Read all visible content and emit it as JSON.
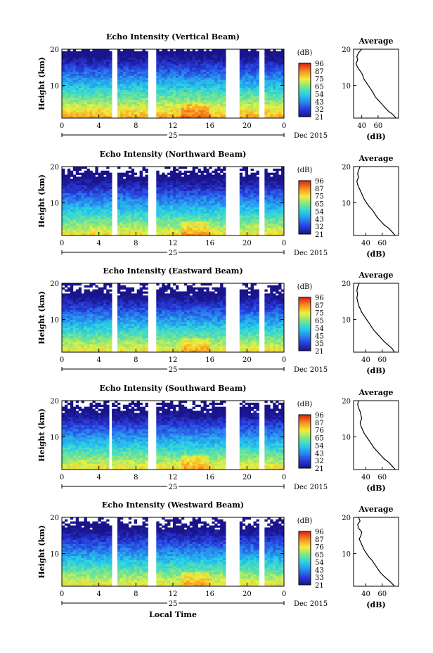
{
  "figure": {
    "xlabel": "Local Time",
    "date_label": "Dec 2015",
    "day_label": "25"
  },
  "chart_data": [
    {
      "type": "heatmap",
      "title": "Echo Intensity (Vertical Beam)",
      "ylabel": "Height (km)",
      "xlim": [
        0,
        24
      ],
      "ylim": [
        1,
        20
      ],
      "xticks": [
        "0",
        "4",
        "8",
        "12",
        "16",
        "20",
        "0"
      ],
      "yticks": [
        "10",
        "20"
      ],
      "colorbar": {
        "label": "(dB)",
        "ticks": [
          "96",
          "87",
          "75",
          "65",
          "54",
          "43",
          "32",
          "21"
        ],
        "range": [
          21,
          96
        ]
      },
      "data_gaps_hours": [
        [
          5.5,
          5.9
        ],
        [
          9.4,
          10.2
        ],
        [
          17.8,
          19.1
        ],
        [
          21.3,
          21.8
        ]
      ],
      "profile": {
        "title": "Average",
        "xlabel": "(dB)",
        "xlim": [
          30,
          85
        ],
        "xticks": [
          "40",
          "60"
        ],
        "height": [
          1,
          2,
          3,
          4,
          5,
          6,
          7,
          8,
          9,
          10,
          11,
          12,
          13,
          14,
          15,
          16,
          17,
          18,
          19,
          20
        ],
        "value": [
          82,
          78,
          72,
          68,
          64,
          60,
          56,
          54,
          51,
          48,
          45,
          42,
          41,
          38,
          35,
          33,
          35,
          34,
          36,
          40
        ]
      }
    },
    {
      "type": "heatmap",
      "title": "Echo Intensity (Northward Beam)",
      "ylabel": "Height (km)",
      "xlim": [
        0,
        24
      ],
      "ylim": [
        1,
        20
      ],
      "xticks": [
        "0",
        "4",
        "8",
        "12",
        "16",
        "20",
        "0"
      ],
      "yticks": [
        "10",
        "20"
      ],
      "colorbar": {
        "label": "(dB)",
        "ticks": [
          "96",
          "87",
          "75",
          "65",
          "54",
          "43",
          "32",
          "21"
        ],
        "range": [
          21,
          96
        ]
      },
      "data_gaps_hours": [
        [
          5.5,
          5.9
        ],
        [
          9.4,
          10.2
        ],
        [
          17.8,
          19.1
        ],
        [
          21.3,
          21.8
        ]
      ],
      "profile": {
        "title": "Average",
        "xlabel": "(dB)",
        "xlim": [
          25,
          80
        ],
        "xticks": [
          "40",
          "60"
        ],
        "height": [
          1,
          2,
          3,
          4,
          5,
          6,
          7,
          8,
          9,
          10,
          11,
          12,
          13,
          14,
          15,
          16,
          17,
          18,
          19,
          20
        ],
        "value": [
          76,
          72,
          68,
          62,
          58,
          54,
          51,
          48,
          44,
          41,
          38,
          36,
          34,
          32,
          30,
          29,
          31,
          30,
          31,
          33
        ]
      }
    },
    {
      "type": "heatmap",
      "title": "Echo Intensity (Eastward Beam)",
      "ylabel": "Height (km)",
      "xlim": [
        0,
        24
      ],
      "ylim": [
        1,
        20
      ],
      "xticks": [
        "0",
        "4",
        "8",
        "12",
        "16",
        "20",
        "0"
      ],
      "yticks": [
        "10",
        "20"
      ],
      "colorbar": {
        "label": "(dB)",
        "ticks": [
          "96",
          "87",
          "75",
          "65",
          "54",
          "45",
          "35",
          "21"
        ],
        "range": [
          21,
          96
        ]
      },
      "data_gaps_hours": [
        [
          5.5,
          5.9
        ],
        [
          9.4,
          10.2
        ],
        [
          17.8,
          19.1
        ],
        [
          21.3,
          21.8
        ]
      ],
      "profile": {
        "title": "Average",
        "xlabel": "(dB)",
        "xlim": [
          25,
          80
        ],
        "xticks": [
          "40",
          "60"
        ],
        "height": [
          1,
          2,
          3,
          4,
          5,
          6,
          7,
          8,
          9,
          10,
          11,
          12,
          13,
          14,
          15,
          16,
          17,
          18,
          19,
          20
        ],
        "value": [
          75,
          72,
          67,
          62,
          58,
          54,
          50,
          47,
          44,
          41,
          38,
          35,
          33,
          31,
          30,
          29,
          30,
          29,
          30,
          32
        ]
      }
    },
    {
      "type": "heatmap",
      "title": "Echo Intensity (Southward Beam)",
      "ylabel": "Height (km)",
      "xlim": [
        0,
        24
      ],
      "ylim": [
        1,
        20
      ],
      "xticks": [
        "0",
        "4",
        "8",
        "12",
        "16",
        "20",
        "0"
      ],
      "yticks": [
        "10",
        "20"
      ],
      "colorbar": {
        "label": "(dB)",
        "ticks": [
          "96",
          "87",
          "76",
          "65",
          "54",
          "43",
          "32",
          "21"
        ],
        "range": [
          21,
          96
        ]
      },
      "data_gaps_hours": [
        [
          5.0,
          5.3
        ],
        [
          9.4,
          10.2
        ],
        [
          17.8,
          19.1
        ],
        [
          21.3,
          21.8
        ]
      ],
      "profile": {
        "title": "Average",
        "xlabel": "(dB)",
        "xlim": [
          25,
          80
        ],
        "xticks": [
          "40",
          "60"
        ],
        "height": [
          1,
          2,
          3,
          4,
          5,
          6,
          7,
          8,
          9,
          10,
          11,
          12,
          13,
          14,
          15,
          16,
          17,
          18,
          19,
          20
        ],
        "value": [
          76,
          72,
          68,
          62,
          58,
          54,
          50,
          47,
          44,
          41,
          38,
          36,
          34,
          33,
          35,
          34,
          33,
          31,
          30,
          31
        ]
      }
    },
    {
      "type": "heatmap",
      "title": "Echo Intensity (Westward Beam)",
      "ylabel": "Height (km)",
      "xlim": [
        0,
        24
      ],
      "ylim": [
        1,
        20
      ],
      "xticks": [
        "0",
        "4",
        "8",
        "12",
        "16",
        "20",
        "0"
      ],
      "yticks": [
        "10",
        "20"
      ],
      "colorbar": {
        "label": "(dB)",
        "ticks": [
          "96",
          "87",
          "76",
          "65",
          "54",
          "43",
          "33",
          "21"
        ],
        "range": [
          21,
          96
        ]
      },
      "data_gaps_hours": [
        [
          5.5,
          5.9
        ],
        [
          9.4,
          10.2
        ],
        [
          17.8,
          19.1
        ],
        [
          21.3,
          21.8
        ]
      ],
      "profile": {
        "title": "Average",
        "xlabel": "(dB)",
        "xlim": [
          25,
          80
        ],
        "xticks": [
          "40",
          "60"
        ],
        "height": [
          1,
          2,
          3,
          4,
          5,
          6,
          7,
          8,
          9,
          10,
          11,
          12,
          13,
          14,
          15,
          16,
          17,
          18,
          19,
          20
        ],
        "value": [
          75,
          71,
          66,
          61,
          57,
          54,
          51,
          48,
          44,
          41,
          38,
          36,
          34,
          32,
          34,
          35,
          31,
          30,
          33,
          31
        ]
      }
    }
  ]
}
